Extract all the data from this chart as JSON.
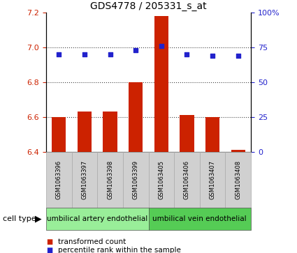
{
  "title": "GDS4778 / 205331_s_at",
  "samples": [
    "GSM1063396",
    "GSM1063397",
    "GSM1063398",
    "GSM1063399",
    "GSM1063405",
    "GSM1063406",
    "GSM1063407",
    "GSM1063408"
  ],
  "bar_values": [
    6.6,
    6.63,
    6.63,
    6.8,
    7.18,
    6.61,
    6.6,
    6.41
  ],
  "dot_values": [
    70,
    70,
    70,
    73,
    76,
    70,
    69,
    69
  ],
  "bar_bottom": 6.4,
  "ylim_left": [
    6.4,
    7.2
  ],
  "ylim_right": [
    0,
    100
  ],
  "yticks_left": [
    6.4,
    6.6,
    6.8,
    7.0,
    7.2
  ],
  "yticks_right": [
    0,
    25,
    50,
    75,
    100
  ],
  "yticklabels_right": [
    "0",
    "25",
    "50",
    "75",
    "100%"
  ],
  "bar_color": "#cc2200",
  "dot_color": "#2222cc",
  "cell_types": [
    {
      "label": "umbilical artery endothelial",
      "start": 0,
      "end": 4,
      "color": "#99ee99"
    },
    {
      "label": "umbilical vein endothelial",
      "start": 4,
      "end": 8,
      "color": "#55cc55"
    }
  ],
  "cell_type_label": "cell type",
  "legend_bar_label": "transformed count",
  "legend_dot_label": "percentile rank within the sample",
  "plot_bg": "#ffffff",
  "sample_box_color": "#d0d0d0",
  "sample_box_edge": "#aaaaaa",
  "title_fontsize": 10,
  "tick_fontsize": 8,
  "sample_fontsize": 6,
  "cell_fontsize": 7.5,
  "legend_fontsize": 7.5
}
